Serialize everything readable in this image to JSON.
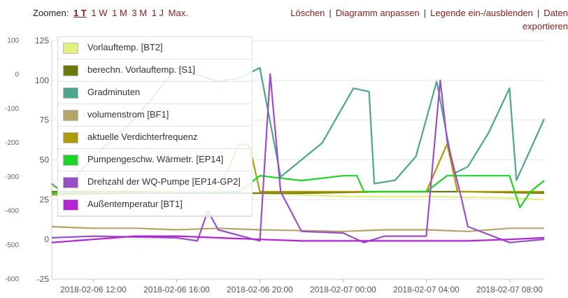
{
  "toolbar": {
    "zoom_label": "Zoomen:",
    "zoom_options": [
      "1 T",
      "1 W",
      "1 M",
      "3 M",
      "1 J",
      "Max."
    ],
    "zoom_active": 0,
    "actions": [
      "Löschen",
      "Diagramm anpassen",
      "Legende ein-/ausblenden",
      "Daten"
    ],
    "action_second_line": "exportieren"
  },
  "chart_data": {
    "type": "line",
    "x_ticks": [
      "2018-02-06 12:00",
      "2018-02-06 16:00",
      "2018-02-06 20:00",
      "2018-02-07 00:00",
      "2018-02-07 04:00",
      "2018-02-07 08:00"
    ],
    "x_range": [
      "2018-02-06 10:00",
      "2018-02-07 09:40"
    ],
    "y_left": {
      "ticks": [
        125,
        100,
        75,
        50,
        25,
        0,
        -25
      ],
      "range": [
        -25,
        125
      ]
    },
    "y_right": {
      "ticks": [
        100,
        0,
        -100,
        -200,
        -300,
        -400,
        -500,
        -600
      ],
      "range": [
        -600,
        100
      ]
    },
    "grid": true,
    "legend_position": "top-left",
    "series": [
      {
        "name": "Vorlauftemp. [BT2]",
        "color": "#e3f07f",
        "axis": "left",
        "points": [
          [
            "2018-02-06 10:00",
            33
          ],
          [
            "2018-02-06 12:00",
            31
          ],
          [
            "2018-02-06 14:00",
            30
          ],
          [
            "2018-02-06 16:00",
            30
          ],
          [
            "2018-02-06 18:00",
            29
          ],
          [
            "2018-02-06 20:00",
            29
          ],
          [
            "2018-02-07 00:00",
            27
          ],
          [
            "2018-02-07 04:00",
            27
          ],
          [
            "2018-02-07 08:00",
            26
          ],
          [
            "2018-02-07 09:40",
            25
          ]
        ]
      },
      {
        "name": "berechn. Vorlauftemp. [S1]",
        "color": "#6b7a08",
        "axis": "left",
        "points": [
          [
            "2018-02-06 10:00",
            30
          ],
          [
            "2018-02-06 14:00",
            30
          ],
          [
            "2018-02-06 18:00",
            29
          ],
          [
            "2018-02-06 22:00",
            29
          ],
          [
            "2018-02-07 02:00",
            30
          ],
          [
            "2018-02-07 06:00",
            30
          ],
          [
            "2018-02-07 09:40",
            29
          ]
        ]
      },
      {
        "name": "Gradminuten",
        "color": "#4aa68c",
        "axis": "right",
        "points": [
          [
            "2018-02-06 10:00",
            -320
          ],
          [
            "2018-02-06 10:30",
            -345
          ],
          [
            "2018-02-06 12:00",
            -240
          ],
          [
            "2018-02-06 14:00",
            -130
          ],
          [
            "2018-02-06 16:00",
            20
          ],
          [
            "2018-02-06 18:00",
            -20
          ],
          [
            "2018-02-06 19:00",
            -10
          ],
          [
            "2018-02-06 20:00",
            20
          ],
          [
            "2018-02-06 21:00",
            -300
          ],
          [
            "2018-02-06 23:00",
            -200
          ],
          [
            "2018-02-07 00:30",
            -40
          ],
          [
            "2018-02-07 01:15",
            -50
          ],
          [
            "2018-02-07 01:30",
            -320
          ],
          [
            "2018-02-07 02:30",
            -310
          ],
          [
            "2018-02-07 03:30",
            -240
          ],
          [
            "2018-02-07 04:30",
            -20
          ],
          [
            "2018-02-07 05:20",
            -290
          ],
          [
            "2018-02-07 06:00",
            -270
          ],
          [
            "2018-02-07 07:00",
            -170
          ],
          [
            "2018-02-07 08:00",
            -40
          ],
          [
            "2018-02-07 08:20",
            -310
          ],
          [
            "2018-02-07 09:00",
            -220
          ],
          [
            "2018-02-07 09:40",
            -130
          ]
        ]
      },
      {
        "name": "volumenstrom [BF1]",
        "color": "#b4a56a",
        "axis": "left",
        "points": [
          [
            "2018-02-06 10:00",
            8
          ],
          [
            "2018-02-06 12:00",
            7
          ],
          [
            "2018-02-06 14:00",
            7
          ],
          [
            "2018-02-06 16:00",
            6
          ],
          [
            "2018-02-06 18:00",
            7
          ],
          [
            "2018-02-06 20:00",
            6
          ],
          [
            "2018-02-07 00:00",
            5
          ],
          [
            "2018-02-07 02:00",
            6
          ],
          [
            "2018-02-07 04:00",
            6
          ],
          [
            "2018-02-07 06:00",
            5
          ],
          [
            "2018-02-07 08:00",
            7
          ],
          [
            "2018-02-07 09:40",
            7
          ]
        ]
      },
      {
        "name": "aktuelle Verdichterfrequenz",
        "color": "#b19a08",
        "axis": "left",
        "points": [
          [
            "2018-02-06 10:00",
            28
          ],
          [
            "2018-02-06 14:00",
            29
          ],
          [
            "2018-02-06 18:00",
            29
          ],
          [
            "2018-02-06 19:00",
            60
          ],
          [
            "2018-02-06 19:30",
            59
          ],
          [
            "2018-02-06 20:00",
            30
          ],
          [
            "2018-02-07 00:00",
            30
          ],
          [
            "2018-02-07 04:00",
            30
          ],
          [
            "2018-02-07 05:00",
            60
          ],
          [
            "2018-02-07 05:30",
            30
          ],
          [
            "2018-02-07 09:40",
            30
          ]
        ]
      },
      {
        "name": "Pumpengeschw. Wärmetr. [EP14]",
        "color": "#1ed425",
        "axis": "left",
        "points": [
          [
            "2018-02-06 10:00",
            29
          ],
          [
            "2018-02-06 14:00",
            29
          ],
          [
            "2018-02-06 19:00",
            30
          ],
          [
            "2018-02-06 20:00",
            40
          ],
          [
            "2018-02-06 22:00",
            37
          ],
          [
            "2018-02-07 00:00",
            40
          ],
          [
            "2018-02-07 00:40",
            40
          ],
          [
            "2018-02-07 01:00",
            30
          ],
          [
            "2018-02-07 04:00",
            30
          ],
          [
            "2018-02-07 05:00",
            40
          ],
          [
            "2018-02-07 07:00",
            40
          ],
          [
            "2018-02-07 08:00",
            40
          ],
          [
            "2018-02-07 08:30",
            20
          ],
          [
            "2018-02-07 09:00",
            30
          ],
          [
            "2018-02-07 09:40",
            37
          ]
        ]
      },
      {
        "name": "Drehzahl der WQ-Pumpe [EP14-GP2]",
        "color": "#9a4fc9",
        "axis": "left",
        "points": [
          [
            "2018-02-06 10:00",
            1
          ],
          [
            "2018-02-06 12:00",
            2
          ],
          [
            "2018-02-06 16:00",
            1
          ],
          [
            "2018-02-06 17:00",
            -1
          ],
          [
            "2018-02-06 17:30",
            18
          ],
          [
            "2018-02-06 18:00",
            6
          ],
          [
            "2018-02-06 20:00",
            -1
          ],
          [
            "2018-02-06 20:30",
            104
          ],
          [
            "2018-02-06 21:00",
            30
          ],
          [
            "2018-02-06 22:00",
            5
          ],
          [
            "2018-02-07 00:00",
            4
          ],
          [
            "2018-02-07 01:00",
            -2
          ],
          [
            "2018-02-07 02:00",
            2
          ],
          [
            "2018-02-07 04:00",
            2
          ],
          [
            "2018-02-07 04:40",
            100
          ],
          [
            "2018-02-07 05:00",
            62
          ],
          [
            "2018-02-07 05:40",
            27
          ],
          [
            "2018-02-07 06:00",
            8
          ],
          [
            "2018-02-07 08:00",
            -2
          ],
          [
            "2018-02-07 09:40",
            0
          ]
        ]
      },
      {
        "name": "Außentemperatur [BT1]",
        "color": "#b224d6",
        "axis": "left",
        "points": [
          [
            "2018-02-06 10:00",
            -2
          ],
          [
            "2018-02-06 12:00",
            0
          ],
          [
            "2018-02-06 14:00",
            2
          ],
          [
            "2018-02-06 16:00",
            2
          ],
          [
            "2018-02-06 18:00",
            1
          ],
          [
            "2018-02-06 20:00",
            0
          ],
          [
            "2018-02-06 22:00",
            -1
          ],
          [
            "2018-02-07 00:00",
            -1
          ],
          [
            "2018-02-07 02:00",
            -1
          ],
          [
            "2018-02-07 04:00",
            -1
          ],
          [
            "2018-02-07 06:00",
            -1
          ],
          [
            "2018-02-07 08:00",
            0
          ],
          [
            "2018-02-07 09:40",
            1
          ]
        ]
      }
    ]
  }
}
